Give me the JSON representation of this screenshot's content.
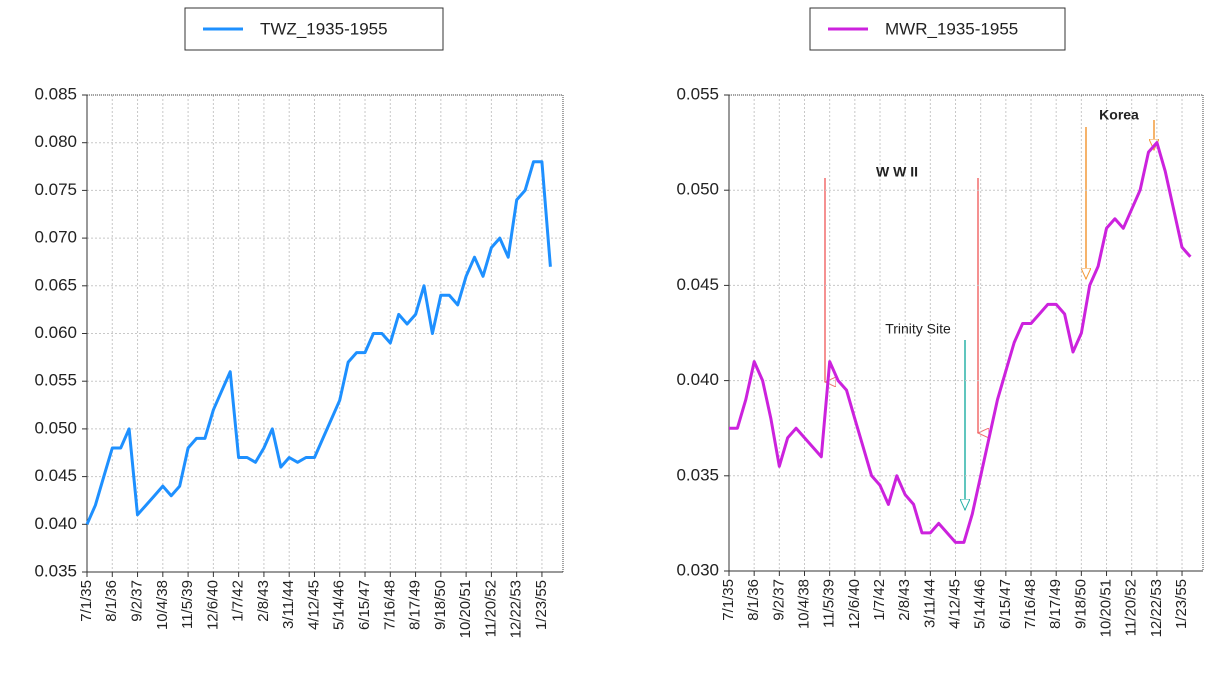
{
  "chart_data": [
    {
      "type": "line",
      "categories": [
        "7/1/35",
        null,
        null,
        "8/1/36",
        null,
        null,
        "9/2/37",
        null,
        null,
        "10/4/38",
        null,
        null,
        "11/5/39",
        null,
        null,
        "12/6/40",
        null,
        null,
        "1/7/42",
        null,
        null,
        "2/8/43",
        null,
        null,
        "3/11/44",
        null,
        null,
        "4/12/45",
        null,
        null,
        "5/14/46",
        null,
        null,
        "6/15/47",
        null,
        null,
        "7/16/48",
        null,
        null,
        "8/17/49",
        null,
        null,
        "9/18/50",
        null,
        null,
        "10/20/51",
        null,
        null,
        "11/20/52",
        null,
        null,
        "12/22/53",
        null,
        null,
        "1/23/55",
        null
      ],
      "series": [
        {
          "name": "TWZ_1935-1955",
          "color": "#1e90ff",
          "values": [
            0.04,
            0.042,
            0.045,
            0.048,
            0.048,
            0.05,
            0.041,
            0.042,
            0.043,
            0.044,
            0.043,
            0.044,
            0.048,
            0.049,
            0.049,
            0.052,
            0.054,
            0.056,
            0.047,
            0.047,
            0.0465,
            0.048,
            0.05,
            0.046,
            0.047,
            0.0465,
            0.047,
            0.047,
            0.049,
            0.051,
            0.053,
            0.057,
            0.058,
            0.058,
            0.06,
            0.06,
            0.059,
            0.062,
            0.061,
            0.062,
            0.065,
            0.06,
            0.064,
            0.064,
            0.063,
            0.066,
            0.068,
            0.066,
            0.069,
            0.07,
            0.068,
            0.074,
            0.075,
            0.078,
            0.078,
            0.067
          ]
        }
      ],
      "ylim": [
        0.035,
        0.085
      ],
      "yticks": [
        0.035,
        {
          "value": 0.04,
          "label": "0.040"
        },
        0.045,
        {
          "value": 0.05,
          "label": "0.050"
        },
        0.055,
        {
          "value": 0.06,
          "label": "0.060"
        },
        0.065,
        {
          "value": 0.07,
          "label": "0.070"
        },
        0.075,
        {
          "value": 0.08,
          "label": "0.080"
        },
        0.085
      ],
      "grid": true
    },
    {
      "type": "line",
      "categories": [
        "7/1/35",
        null,
        null,
        "8/1/36",
        null,
        null,
        "9/2/37",
        null,
        null,
        "10/4/38",
        null,
        null,
        "11/5/39",
        null,
        null,
        "12/6/40",
        null,
        null,
        "1/7/42",
        null,
        null,
        "2/8/43",
        null,
        null,
        "3/11/44",
        null,
        null,
        "4/12/45",
        null,
        null,
        "5/14/46",
        null,
        null,
        "6/15/47",
        null,
        null,
        "7/16/48",
        null,
        null,
        "8/17/49",
        null,
        null,
        "9/18/50",
        null,
        null,
        "10/20/51",
        null,
        null,
        "11/20/52",
        null,
        null,
        "12/22/53",
        null,
        null,
        "1/23/55",
        null
      ],
      "series": [
        {
          "name": "MWR_1935-1955",
          "color": "#cc22dd",
          "values": [
            0.0375,
            0.0375,
            0.039,
            0.041,
            0.04,
            0.038,
            0.0355,
            0.037,
            0.0375,
            0.037,
            0.0365,
            0.036,
            0.041,
            0.04,
            0.0395,
            0.038,
            0.0365,
            0.035,
            0.0345,
            0.0335,
            0.035,
            0.034,
            0.0335,
            0.032,
            0.032,
            0.0325,
            0.032,
            0.0315,
            0.0315,
            0.033,
            0.035,
            0.037,
            0.039,
            0.0405,
            0.042,
            0.043,
            0.043,
            0.0435,
            0.044,
            0.044,
            0.0435,
            0.0415,
            0.0425,
            0.045,
            0.046,
            0.048,
            0.0485,
            0.048,
            0.049,
            0.05,
            0.052,
            0.0525,
            0.051,
            0.049,
            0.047,
            0.0465
          ]
        }
      ],
      "ylim": [
        0.03,
        0.055
      ],
      "yticks": [
        {
          "value": 0.03,
          "label": "0.030"
        },
        0.035,
        {
          "value": 0.04,
          "label": "0.040"
        },
        0.045,
        {
          "value": 0.05,
          "label": "0.050"
        },
        0.055
      ],
      "grid": true,
      "annotations": [
        "W W II",
        "Trinity Site",
        "Korea"
      ]
    }
  ]
}
